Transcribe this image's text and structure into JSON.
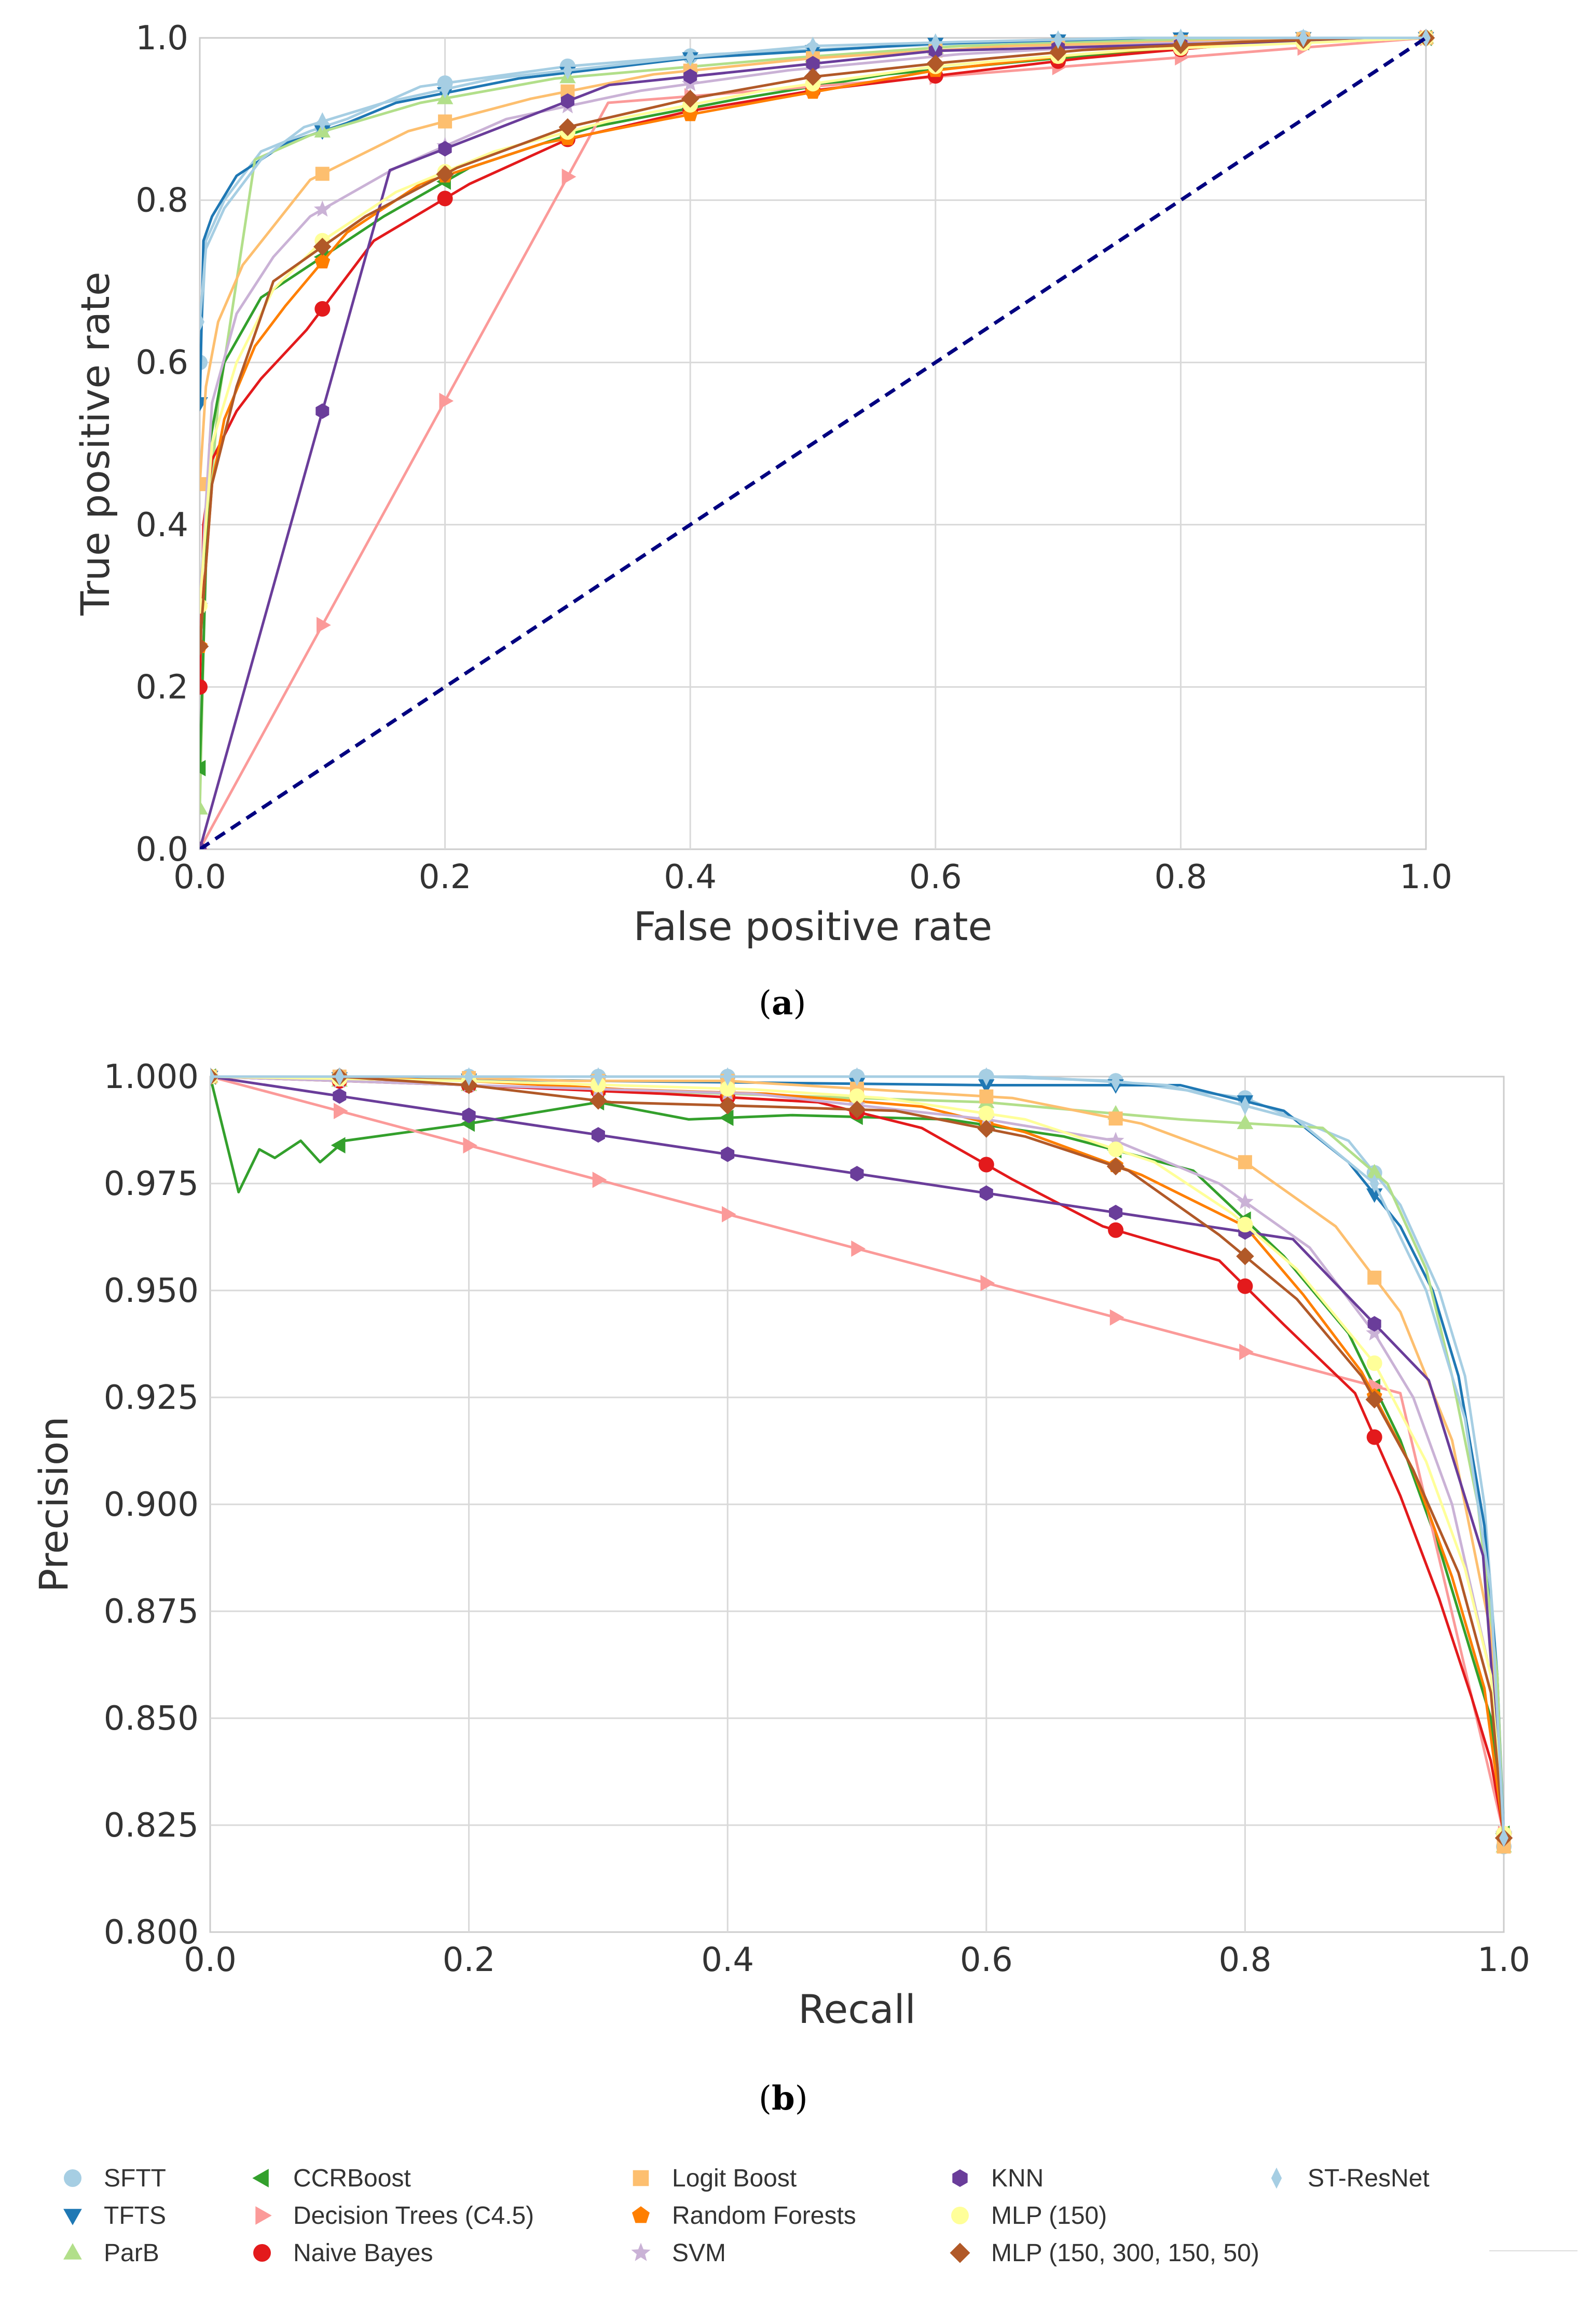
{
  "colors": {
    "SFTT": "#a6cee3",
    "TFTS": "#1f78b4",
    "ParB": "#b2df8a",
    "CCRBoost": "#33a02c",
    "Decision Trees (C4.5)": "#fb9a99",
    "Naive Bayes": "#e31a1c",
    "Logit Boost": "#fdbf6f",
    "Random Forests": "#ff7f00",
    "SVM": "#cab2d6",
    "KNN": "#6a3d9a",
    "MLP (150)": "#ffff99",
    "MLP (150, 300, 150, 50)": "#b15928",
    "ST-ResNet": "#a6cee3",
    "chance": "#000080",
    "grid": "#d9d9d9",
    "tick_text": "#333333"
  },
  "panel_labels": {
    "a": "a",
    "b": "b"
  },
  "legend": [
    {
      "name": "SFTT",
      "marker": "circle"
    },
    {
      "name": "TFTS",
      "marker": "triangle-down"
    },
    {
      "name": "ParB",
      "marker": "triangle-up"
    },
    {
      "name": "CCRBoost",
      "marker": "triangle-left"
    },
    {
      "name": "Decision Trees (C4.5)",
      "marker": "triangle-right"
    },
    {
      "name": "Naive Bayes",
      "marker": "circle"
    },
    {
      "name": "Logit Boost",
      "marker": "square"
    },
    {
      "name": "Random Forests",
      "marker": "pentagon"
    },
    {
      "name": "SVM",
      "marker": "star"
    },
    {
      "name": "KNN",
      "marker": "hexagon"
    },
    {
      "name": "MLP (150)",
      "marker": "circle"
    },
    {
      "name": "MLP (150, 300, 150, 50)",
      "marker": "diamond"
    },
    {
      "name": "ST-ResNet",
      "marker": "thin-diamond"
    }
  ],
  "chart_data": [
    {
      "type": "line",
      "title": "",
      "xlabel": "False positive rate",
      "ylabel": "True positive rate",
      "xlim": [
        0,
        1
      ],
      "ylim": [
        0,
        1
      ],
      "xticks": [
        "0.0",
        "0.2",
        "0.4",
        "0.6",
        "0.8",
        "1.0"
      ],
      "yticks": [
        "0.0",
        "0.2",
        "0.4",
        "0.6",
        "0.8",
        "1.0"
      ],
      "grid": true,
      "series": [
        {
          "name": "SFTT",
          "x": [
            0,
            0.005,
            0.02,
            0.05,
            0.09,
            0.12,
            0.18,
            0.3,
            0.42,
            0.52,
            0.66,
            0.78,
            0.9,
            1.0
          ],
          "y": [
            0.6,
            0.75,
            0.8,
            0.86,
            0.885,
            0.9,
            0.94,
            0.965,
            0.98,
            0.987,
            0.995,
            0.998,
            1.0,
            1.0
          ]
        },
        {
          "name": "TFTS",
          "x": [
            0,
            0.003,
            0.01,
            0.03,
            0.07,
            0.12,
            0.16,
            0.26,
            0.4,
            0.6,
            0.7,
            0.82,
            1.0
          ],
          "y": [
            0.55,
            0.75,
            0.78,
            0.83,
            0.87,
            0.895,
            0.92,
            0.95,
            0.975,
            0.993,
            0.997,
            1.0,
            1.0
          ]
        },
        {
          "name": "ParB",
          "x": [
            0,
            0.005,
            0.015,
            0.03,
            0.045,
            0.09,
            0.18,
            0.29,
            0.48,
            0.62,
            0.8,
            1.0
          ],
          "y": [
            0.05,
            0.37,
            0.55,
            0.7,
            0.85,
            0.88,
            0.92,
            0.95,
            0.975,
            0.99,
            0.998,
            1.0
          ]
        },
        {
          "name": "CCRBoost",
          "x": [
            0,
            0.008,
            0.02,
            0.05,
            0.1,
            0.15,
            0.22,
            0.32,
            0.44,
            0.56,
            0.7,
            0.85,
            1.0
          ],
          "y": [
            0.1,
            0.5,
            0.6,
            0.68,
            0.73,
            0.78,
            0.84,
            0.89,
            0.925,
            0.955,
            0.975,
            0.992,
            1.0
          ]
        },
        {
          "name": "Decision Trees (C4.5)",
          "x": [
            0,
            0.333,
            1.0
          ],
          "y": [
            0,
            0.92,
            1.0
          ]
        },
        {
          "name": "Naive Bayes",
          "x": [
            0,
            0.003,
            0.01,
            0.03,
            0.05,
            0.087,
            0.142,
            0.22,
            0.3,
            0.4,
            0.5,
            0.61,
            0.72,
            0.83,
            1.0
          ],
          "y": [
            0.2,
            0.4,
            0.48,
            0.54,
            0.58,
            0.64,
            0.75,
            0.82,
            0.875,
            0.91,
            0.935,
            0.955,
            0.975,
            0.99,
            1.0
          ]
        },
        {
          "name": "Logit Boost",
          "x": [
            0,
            0.005,
            0.015,
            0.035,
            0.09,
            0.17,
            0.27,
            0.37,
            0.5,
            0.66,
            0.8,
            0.94,
            1.0
          ],
          "y": [
            0.45,
            0.57,
            0.65,
            0.72,
            0.825,
            0.885,
            0.925,
            0.955,
            0.975,
            0.99,
            0.995,
            1.0,
            1.0
          ]
        },
        {
          "name": "Random Forests",
          "x": [
            0,
            0.01,
            0.02,
            0.045,
            0.07,
            0.12,
            0.18,
            0.28,
            0.38,
            0.47,
            0.6,
            0.72,
            0.86,
            1.0
          ],
          "y": [
            0.25,
            0.45,
            0.53,
            0.62,
            0.67,
            0.76,
            0.82,
            0.87,
            0.9,
            0.925,
            0.96,
            0.98,
            0.995,
            1.0
          ]
        },
        {
          "name": "SVM",
          "x": [
            0,
            0.01,
            0.03,
            0.06,
            0.09,
            0.16,
            0.25,
            0.36,
            0.48,
            0.62,
            0.78,
            1.0
          ],
          "y": [
            0.3,
            0.55,
            0.66,
            0.73,
            0.78,
            0.84,
            0.9,
            0.935,
            0.96,
            0.98,
            0.993,
            1.0
          ]
        },
        {
          "name": "KNN",
          "x": [
            0,
            0.155,
            0.334,
            0.6,
            1.0
          ],
          "y": [
            0,
            0.837,
            0.942,
            0.984,
            1.0
          ]
        },
        {
          "name": "MLP (150)",
          "x": [
            0,
            0.01,
            0.03,
            0.06,
            0.1,
            0.16,
            0.24,
            0.34,
            0.46,
            0.6,
            0.76,
            1.0
          ],
          "y": [
            0.3,
            0.5,
            0.6,
            0.69,
            0.75,
            0.81,
            0.86,
            0.9,
            0.935,
            0.965,
            0.985,
            1.0
          ]
        },
        {
          "name": "MLP (150, 300, 150, 50)",
          "x": [
            0,
            0.01,
            0.03,
            0.06,
            0.135,
            0.21,
            0.3,
            0.4,
            0.5,
            0.61,
            0.72,
            0.85,
            0.95,
            1.0
          ],
          "y": [
            0.25,
            0.45,
            0.57,
            0.7,
            0.78,
            0.84,
            0.89,
            0.925,
            0.952,
            0.97,
            0.985,
            0.995,
            1.0,
            1.0
          ]
        },
        {
          "name": "ST-ResNet",
          "x": [
            0,
            0.005,
            0.02,
            0.05,
            0.085,
            0.15,
            0.24,
            0.39,
            0.5,
            0.62,
            0.76,
            0.92,
            1.0
          ],
          "y": [
            0.65,
            0.74,
            0.79,
            0.85,
            0.89,
            0.92,
            0.95,
            0.975,
            0.99,
            0.995,
            1.0,
            1.0,
            1.0
          ]
        },
        {
          "name": "chance",
          "x": [
            0,
            1
          ],
          "y": [
            0,
            1
          ]
        }
      ]
    },
    {
      "type": "line",
      "title": "",
      "xlabel": "Recall",
      "ylabel": "Precision",
      "xlim": [
        0,
        1
      ],
      "ylim": [
        0.8,
        1.0
      ],
      "xticks": [
        "0.0",
        "0.2",
        "0.4",
        "0.6",
        "0.8",
        "1.0"
      ],
      "yticks": [
        "0.800",
        "0.825",
        "0.850",
        "0.875",
        "0.900",
        "0.925",
        "0.950",
        "0.975",
        "1.000"
      ],
      "grid": true,
      "series": [
        {
          "name": "SFTT",
          "x": [
            0,
            0.3,
            0.6,
            0.7,
            0.8,
            0.88,
            0.92,
            0.95,
            0.97,
            0.985,
            0.995,
            1.0
          ],
          "y": [
            1.0,
            1.0,
            1.0,
            0.999,
            0.995,
            0.985,
            0.97,
            0.95,
            0.93,
            0.9,
            0.86,
            0.82
          ]
        },
        {
          "name": "TFTS",
          "x": [
            0,
            0.3,
            0.6,
            0.75,
            0.83,
            0.88,
            0.92,
            0.945,
            0.965,
            0.985,
            0.995,
            1.0
          ],
          "y": [
            1.0,
            0.999,
            0.998,
            0.998,
            0.992,
            0.98,
            0.965,
            0.95,
            0.93,
            0.895,
            0.86,
            0.822
          ]
        },
        {
          "name": "ParB",
          "x": [
            0,
            0.2,
            0.4,
            0.6,
            0.75,
            0.86,
            0.91,
            0.94,
            0.96,
            0.98,
            0.995,
            1.0
          ],
          "y": [
            1.0,
            0.998,
            0.996,
            0.994,
            0.99,
            0.988,
            0.975,
            0.955,
            0.93,
            0.9,
            0.86,
            0.82
          ]
        },
        {
          "name": "CCRBoost",
          "x": [
            0,
            0.022,
            0.038,
            0.05,
            0.07,
            0.085,
            0.104,
            0.2,
            0.3,
            0.37,
            0.45,
            0.57,
            0.66,
            0.76,
            0.83,
            0.88,
            0.92,
            0.95,
            0.97,
            0.99,
            1.0
          ],
          "y": [
            1.0,
            0.973,
            0.983,
            0.981,
            0.985,
            0.98,
            0.985,
            0.989,
            0.994,
            0.99,
            0.991,
            0.99,
            0.986,
            0.978,
            0.958,
            0.94,
            0.915,
            0.89,
            0.87,
            0.85,
            0.823
          ]
        },
        {
          "name": "Decision Trees (C4.5)",
          "x": [
            0,
            0.92,
            1.0
          ],
          "y": [
            1.0,
            0.926,
            0.823
          ]
        },
        {
          "name": "Naive Bayes",
          "x": [
            0,
            0.2,
            0.35,
            0.47,
            0.55,
            0.62,
            0.69,
            0.78,
            0.83,
            0.885,
            0.92,
            0.95,
            0.975,
            0.99,
            1.0
          ],
          "y": [
            1.0,
            0.998,
            0.996,
            0.994,
            0.988,
            0.976,
            0.965,
            0.957,
            0.942,
            0.926,
            0.902,
            0.878,
            0.855,
            0.84,
            0.823
          ]
        },
        {
          "name": "Logit Boost",
          "x": [
            0,
            0.04,
            0.16,
            0.28,
            0.4,
            0.62,
            0.72,
            0.8,
            0.87,
            0.92,
            0.96,
            0.99,
            1.0
          ],
          "y": [
            1.0,
            1.0,
            1.0,
            0.999,
            0.999,
            0.995,
            0.989,
            0.98,
            0.965,
            0.945,
            0.915,
            0.87,
            0.82
          ]
        },
        {
          "name": "Random Forests",
          "x": [
            0,
            0.08,
            0.2,
            0.32,
            0.43,
            0.55,
            0.63,
            0.72,
            0.8,
            0.845,
            0.89,
            0.93,
            0.96,
            0.985,
            1.0
          ],
          "y": [
            1.0,
            1.0,
            0.999,
            0.997,
            0.996,
            0.993,
            0.987,
            0.977,
            0.965,
            0.949,
            0.931,
            0.908,
            0.883,
            0.857,
            0.823
          ]
        },
        {
          "name": "SVM",
          "x": [
            0,
            0.2,
            0.42,
            0.6,
            0.7,
            0.78,
            0.85,
            0.9,
            0.93,
            0.96,
            0.99,
            1.0
          ],
          "y": [
            1.0,
            0.998,
            0.996,
            0.99,
            0.985,
            0.975,
            0.96,
            0.94,
            0.925,
            0.9,
            0.86,
            0.823
          ]
        },
        {
          "name": "KNN",
          "x": [
            0,
            0.837,
            0.942,
            0.984,
            1.0
          ],
          "y": [
            1.0,
            0.962,
            0.929,
            0.888,
            0.823
          ]
        },
        {
          "name": "MLP (150)",
          "x": [
            0,
            0.2,
            0.42,
            0.52,
            0.63,
            0.73,
            0.79,
            0.84,
            0.9,
            0.94,
            0.97,
            0.99,
            1.0
          ],
          "y": [
            1.0,
            0.999,
            0.997,
            0.995,
            0.99,
            0.98,
            0.968,
            0.955,
            0.933,
            0.91,
            0.885,
            0.86,
            0.823
          ]
        },
        {
          "name": "MLP (150, 300, 150, 50)",
          "x": [
            0,
            0.1,
            0.2,
            0.31,
            0.43,
            0.53,
            0.63,
            0.71,
            0.78,
            0.84,
            0.89,
            0.93,
            0.965,
            0.99,
            1.0
          ],
          "y": [
            1.0,
            1.0,
            0.998,
            0.994,
            0.993,
            0.992,
            0.986,
            0.978,
            0.963,
            0.948,
            0.93,
            0.908,
            0.884,
            0.856,
            0.822
          ]
        },
        {
          "name": "ST-ResNet",
          "x": [
            0,
            0.13,
            0.26,
            0.39,
            0.51,
            0.63,
            0.74,
            0.84,
            0.9,
            0.94,
            0.97,
            0.99,
            1.0
          ],
          "y": [
            1.0,
            1.0,
            1.0,
            1.0,
            1.0,
            1.0,
            0.998,
            0.99,
            0.975,
            0.95,
            0.92,
            0.88,
            0.822
          ]
        }
      ]
    }
  ]
}
